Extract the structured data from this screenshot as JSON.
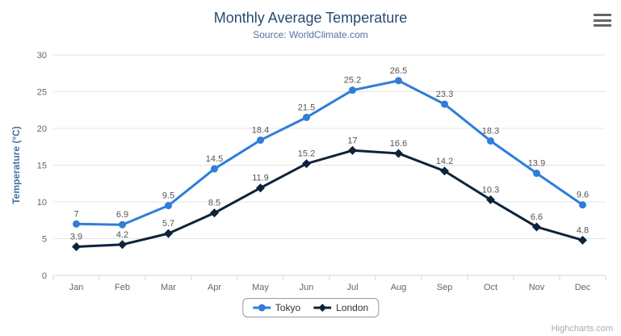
{
  "credits": "Highcharts.com",
  "chart_data": {
    "type": "line",
    "title": "Monthly Average Temperature",
    "subtitle": "Source: WorldClimate.com",
    "categories": [
      "Jan",
      "Feb",
      "Mar",
      "Apr",
      "May",
      "Jun",
      "Jul",
      "Aug",
      "Sep",
      "Oct",
      "Nov",
      "Dec"
    ],
    "series": [
      {
        "name": "Tokyo",
        "color": "#2f7ed8",
        "marker": "circle",
        "values": [
          7,
          6.9,
          9.5,
          14.5,
          18.4,
          21.5,
          25.2,
          26.5,
          23.3,
          18.3,
          13.9,
          9.6
        ]
      },
      {
        "name": "London",
        "color": "#0d233a",
        "marker": "diamond",
        "values": [
          3.9,
          4.2,
          5.7,
          8.5,
          11.9,
          15.2,
          17,
          16.6,
          14.2,
          10.3,
          6.6,
          4.8
        ]
      }
    ],
    "xlabel": "",
    "ylabel": "Temperature (°C)",
    "ylim": [
      0,
      30
    ],
    "ytick_interval": 5,
    "grid": true,
    "data_labels": true,
    "legend_position": "bottom"
  },
  "style": {
    "grid_color": "#e6e6e6",
    "axis_line_color": "#ccd6eb",
    "tick_label_color": "#666666",
    "data_label_color": "#555555",
    "axis_title_color": "#4572a7",
    "title_color": "#274b6d",
    "subtitle_color": "#4d759e"
  }
}
